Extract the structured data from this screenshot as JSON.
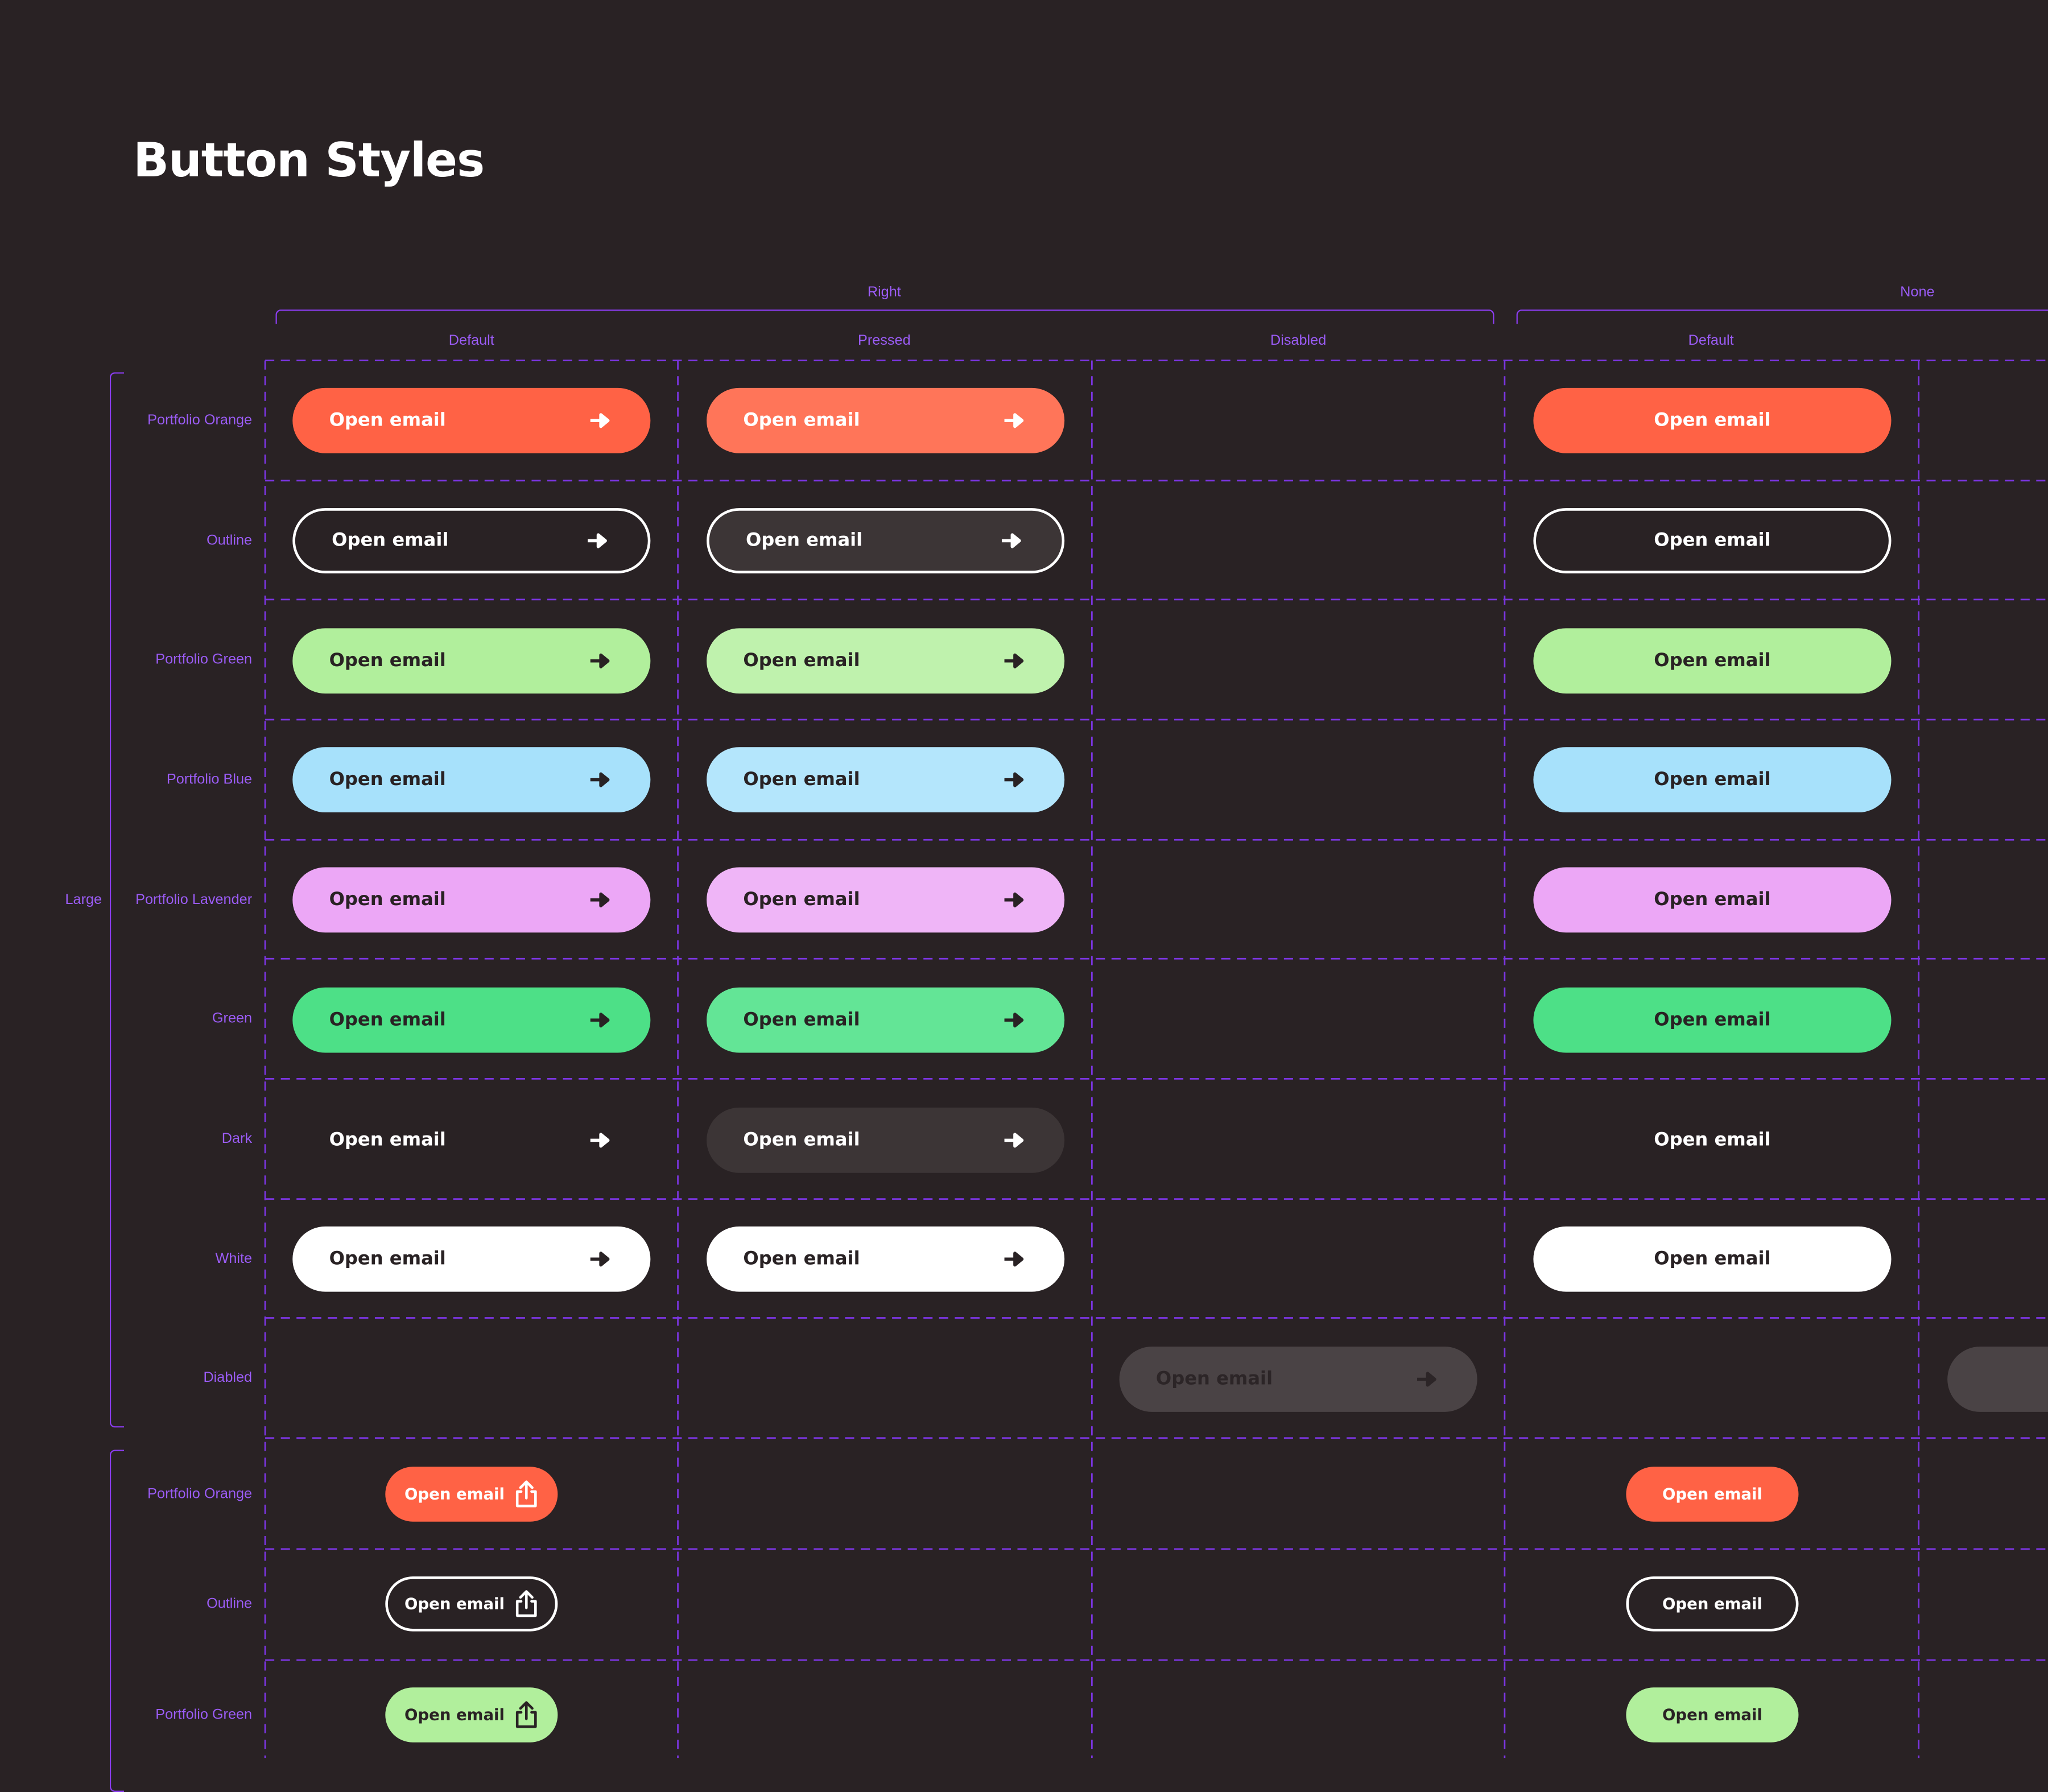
{
  "title": "Button Styles",
  "group_headers": [
    "Right",
    "None"
  ],
  "column_headers": [
    "Default",
    "Pressed",
    "Disabled",
    "Default"
  ],
  "size_labels": [
    "Large"
  ],
  "large_rows": [
    "Portfolio Orange",
    "Outline",
    "Portfolio Green",
    "Portfolio Blue",
    "Portfolio Lavender",
    "Green",
    "Dark",
    "White",
    "Diabled"
  ],
  "small_rows": [
    "Portfolio Orange",
    "Outline",
    "Portfolio Green"
  ],
  "button_label": "Open email",
  "icons": {
    "trailing_large": "arrow-right-icon",
    "trailing_small": "share-icon"
  },
  "colors": {
    "background": "#292224",
    "annotation": "#9b5cf6",
    "portfolio_orange": "#ff6245",
    "portfolio_green": "#b1ef9c",
    "portfolio_blue": "#a7e1fb",
    "portfolio_lavender": "#eca7f6",
    "green": "#4de087",
    "white": "#ffffff",
    "disabled": "#4a4345"
  }
}
